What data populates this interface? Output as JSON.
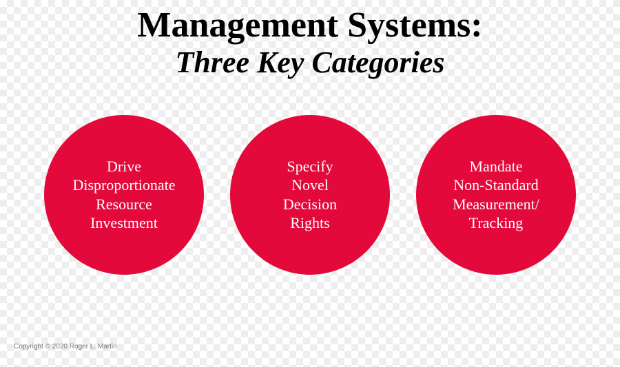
{
  "title": "Management Systems:",
  "subtitle": "Three Key Categories",
  "title_color": "#000000",
  "title_fontsize": 52,
  "subtitle_fontsize": 44,
  "circles": {
    "diameter": 232,
    "fill_color": "#e3093a",
    "text_color": "#ffffff",
    "text_fontsize": 22,
    "items": [
      {
        "text": "Drive\nDisproportionate\nResource\nInvestment"
      },
      {
        "text": "Specify\nNovel\nDecision\nRights"
      },
      {
        "text": "Mandate\nNon-Standard\nMeasurement/\nTracking"
      }
    ]
  },
  "copyright": {
    "text": "Copyright © 2020 Roger L. Martin",
    "fontsize": 10
  }
}
